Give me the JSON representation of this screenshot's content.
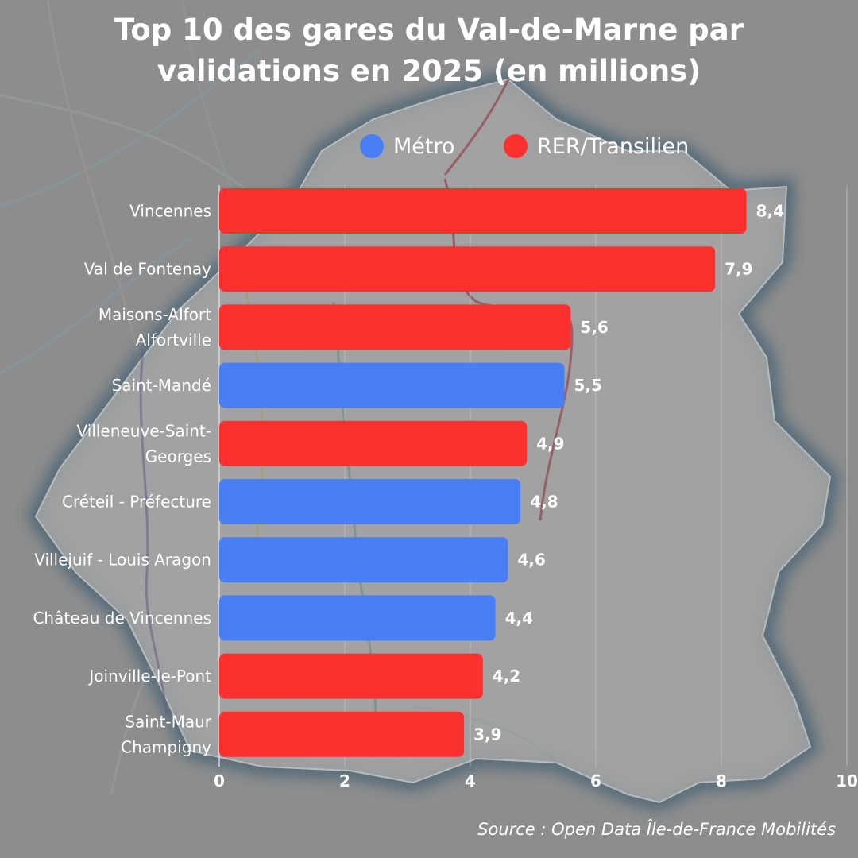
{
  "title_lines": [
    "Top 10 des gares du Val-de-Marne par",
    "validations en 2025 (en millions)"
  ],
  "legend": [
    {
      "label": "Métro",
      "color": "#4a7ef5"
    },
    {
      "label": "RER/Transilien",
      "color": "#fd3030"
    }
  ],
  "source": "Source : Open Data Île-de-France Mobilités",
  "chart_data": {
    "type": "bar",
    "orientation": "horizontal",
    "categories": [
      [
        "Vincennes"
      ],
      [
        "Val de Fontenay"
      ],
      [
        "Maisons-Alfort",
        "Alfortville"
      ],
      [
        "Saint-Mandé"
      ],
      [
        "Villeneuve-Saint-",
        "Georges"
      ],
      [
        "Créteil - Préfecture"
      ],
      [
        "Villejuif - Louis Aragon"
      ],
      [
        "Château de Vincennes"
      ],
      [
        "Joinville-le-Pont"
      ],
      [
        "Saint-Maur",
        "Champigny"
      ]
    ],
    "values": [
      8.4,
      7.9,
      5.6,
      5.5,
      4.9,
      4.8,
      4.6,
      4.4,
      4.2,
      3.9
    ],
    "value_labels": [
      "8,4",
      "7,9",
      "5,6",
      "5,5",
      "4,9",
      "4,8",
      "4,6",
      "4,4",
      "4,2",
      "3,9"
    ],
    "types": [
      "RER/Transilien",
      "RER/Transilien",
      "RER/Transilien",
      "Métro",
      "RER/Transilien",
      "Métro",
      "Métro",
      "Métro",
      "RER/Transilien",
      "RER/Transilien"
    ],
    "xlim": [
      0,
      10
    ],
    "xticks": [
      0,
      2,
      4,
      6,
      8,
      10
    ],
    "grid": true,
    "legend_position": "top"
  }
}
